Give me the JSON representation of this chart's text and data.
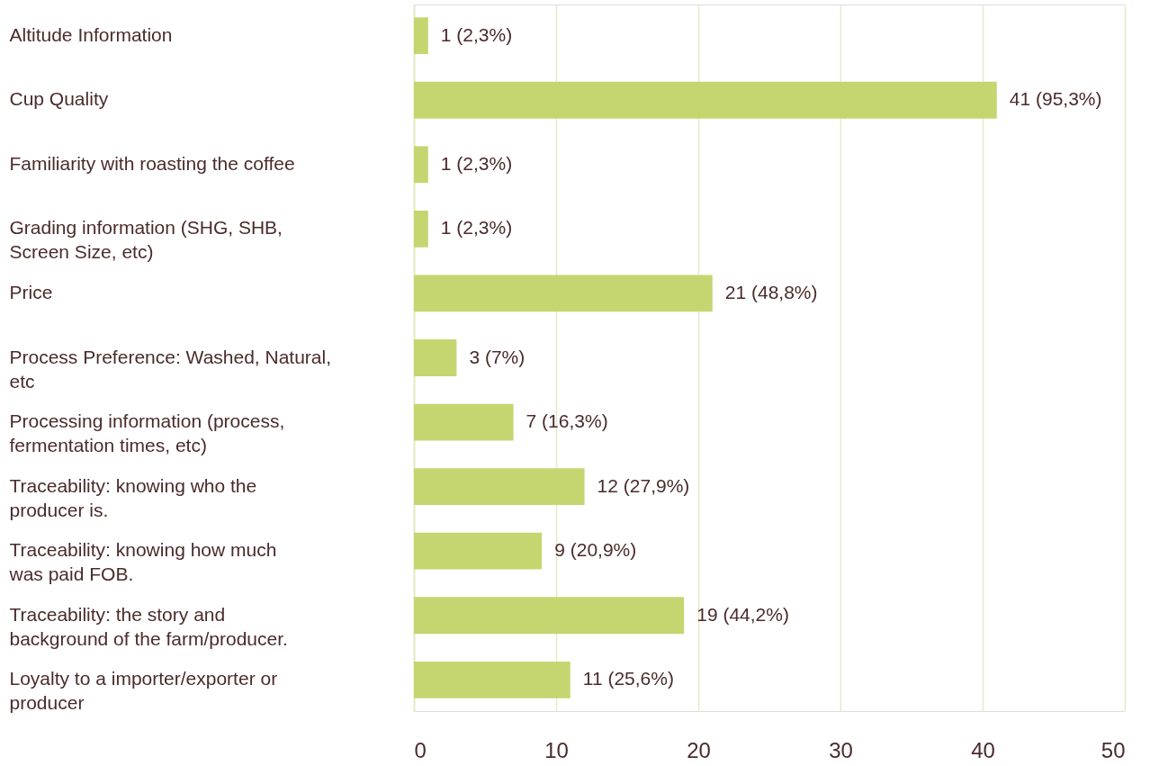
{
  "chart_data": {
    "type": "bar",
    "orientation": "horizontal",
    "categories": [
      "Altitude Information",
      "Cup Quality",
      "Familiarity with roasting the coffee",
      "Grading information (SHG, SHB,\nScreen Size, etc)",
      "Price",
      "Process Preference: Washed, Natural,\netc",
      "Processing information (process,\nfermentation times, etc)",
      "Traceability: knowing who the\nproducer is.",
      "Traceability: knowing how much\nwas paid FOB.",
      "Traceability: the story and\nbackground of the farm/producer.",
      "Loyalty to a importer/exporter or\nproducer"
    ],
    "values": [
      1,
      41,
      1,
      1,
      21,
      3,
      7,
      12,
      9,
      19,
      11
    ],
    "value_labels": [
      "1 (2,3%)",
      "41 (95,3%)",
      "1 (2,3%)",
      "1 (2,3%)",
      "21 (48,8%)",
      "3 (7%)",
      "7 (16,3%)",
      "12 (27,9%)",
      "9 (20,9%)",
      "19 (44,2%)",
      "11 (25,6%)"
    ],
    "color": "#c5d671",
    "xlim": [
      0,
      50
    ],
    "xticks": [
      0,
      10,
      20,
      30,
      40,
      50
    ],
    "grid": "x"
  }
}
